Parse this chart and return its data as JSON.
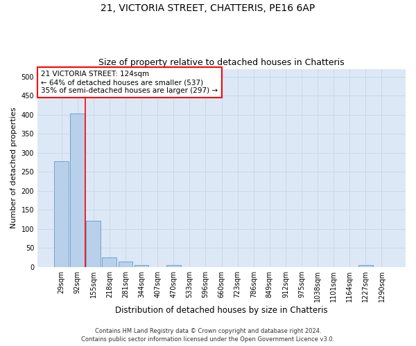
{
  "title_line1": "21, VICTORIA STREET, CHATTERIS, PE16 6AP",
  "title_line2": "Size of property relative to detached houses in Chatteris",
  "xlabel": "Distribution of detached houses by size in Chatteris",
  "ylabel": "Number of detached properties",
  "footnote1": "Contains HM Land Registry data © Crown copyright and database right 2024.",
  "footnote2": "Contains public sector information licensed under the Open Government Licence v3.0.",
  "bar_labels": [
    "29sqm",
    "92sqm",
    "155sqm",
    "218sqm",
    "281sqm",
    "344sqm",
    "407sqm",
    "470sqm",
    "533sqm",
    "596sqm",
    "660sqm",
    "723sqm",
    "786sqm",
    "849sqm",
    "912sqm",
    "975sqm",
    "1038sqm",
    "1101sqm",
    "1164sqm",
    "1227sqm",
    "1290sqm"
  ],
  "bar_values": [
    277,
    403,
    121,
    26,
    14,
    5,
    0,
    6,
    0,
    0,
    0,
    0,
    0,
    0,
    0,
    0,
    0,
    0,
    0,
    5,
    0
  ],
  "bar_color": "#b8d0ea",
  "bar_edge_color": "#6699cc",
  "ylim": [
    0,
    520
  ],
  "yticks": [
    0,
    50,
    100,
    150,
    200,
    250,
    300,
    350,
    400,
    450,
    500
  ],
  "red_line_x": 1.5,
  "annotation_text_line1": "21 VICTORIA STREET: 124sqm",
  "annotation_text_line2": "← 64% of detached houses are smaller (537)",
  "annotation_text_line3": "35% of semi-detached houses are larger (297) →",
  "annotation_box_color": "white",
  "annotation_box_edge_color": "red",
  "red_line_color": "red",
  "grid_color": "#c8d8ec",
  "bg_color": "#dce8f5",
  "fig_bg_color": "white",
  "title1_fontsize": 10,
  "title2_fontsize": 9,
  "ylabel_fontsize": 8,
  "xlabel_fontsize": 8.5,
  "tick_fontsize": 7,
  "annot_fontsize": 7.5,
  "footnote_fontsize": 6
}
